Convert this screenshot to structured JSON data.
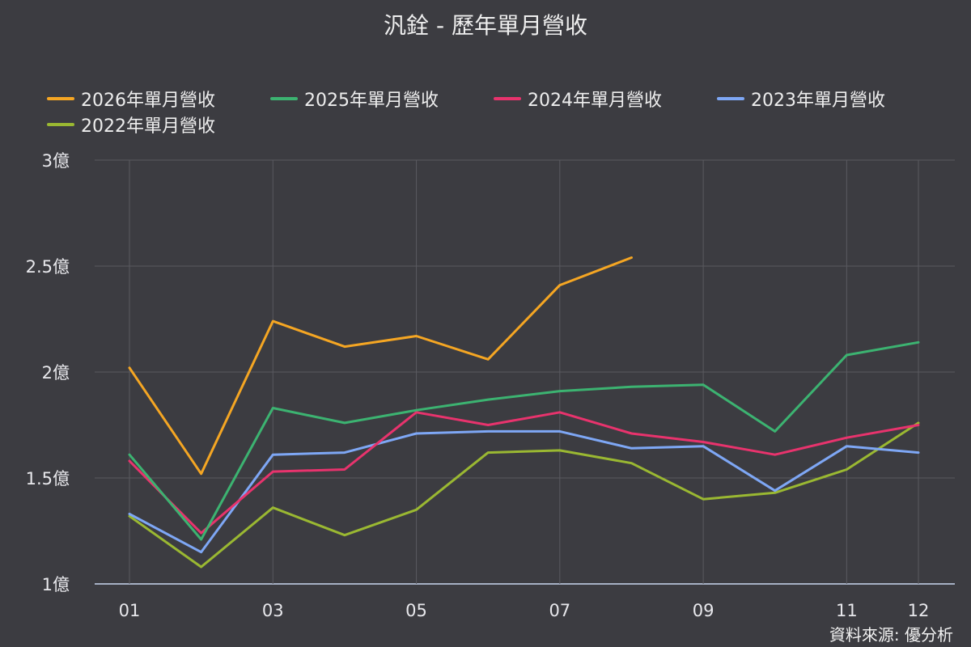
{
  "page": {
    "title": "汎銓 - 歷年單月營收",
    "source": "資料來源: 優分析"
  },
  "colors": {
    "background": "#3c3c41",
    "grid": "#5a5a60",
    "baseline": "#c9d6f0",
    "text": "#e8e8ec"
  },
  "chart_data": {
    "type": "line",
    "title": "汎銓 - 歷年單月營收",
    "xlabel": "",
    "ylabel": "",
    "x": [
      1,
      2,
      3,
      4,
      5,
      6,
      7,
      8,
      9,
      10,
      11,
      12
    ],
    "x_tick_values": [
      1,
      3,
      5,
      7,
      9,
      11,
      12
    ],
    "x_tick_labels": [
      "01",
      "03",
      "05",
      "07",
      "09",
      "11",
      "12"
    ],
    "y_ticks": [
      1,
      1.5,
      2,
      2.5,
      3
    ],
    "y_tick_labels": [
      "1億",
      "1.5億",
      "2億",
      "2.5億",
      "3億"
    ],
    "ylim": [
      1,
      3
    ],
    "xlim": [
      0.5,
      12.5
    ],
    "grid": true,
    "legend_position": "top",
    "series": [
      {
        "name": "2026年單月營收",
        "color": "#f5a623",
        "values": [
          2.02,
          1.52,
          2.24,
          2.12,
          2.17,
          2.06,
          2.41,
          2.54,
          null,
          null,
          null,
          null
        ]
      },
      {
        "name": "2025年單月營收",
        "color": "#3cb371",
        "values": [
          1.61,
          1.21,
          1.83,
          1.76,
          1.82,
          1.87,
          1.91,
          1.93,
          1.94,
          1.72,
          2.08,
          2.14
        ]
      },
      {
        "name": "2024年單月營收",
        "color": "#e8336d",
        "values": [
          1.58,
          1.24,
          1.53,
          1.54,
          1.81,
          1.75,
          1.81,
          1.71,
          1.67,
          1.61,
          1.69,
          1.75
        ]
      },
      {
        "name": "2023年單月營收",
        "color": "#7ea7f5",
        "values": [
          1.33,
          1.15,
          1.61,
          1.62,
          1.71,
          1.72,
          1.72,
          1.64,
          1.65,
          1.44,
          1.65,
          1.62
        ]
      },
      {
        "name": "2022年單月營收",
        "color": "#9ab832",
        "values": [
          1.32,
          1.08,
          1.36,
          1.23,
          1.35,
          1.62,
          1.63,
          1.57,
          1.4,
          1.43,
          1.54,
          1.76
        ]
      }
    ]
  }
}
